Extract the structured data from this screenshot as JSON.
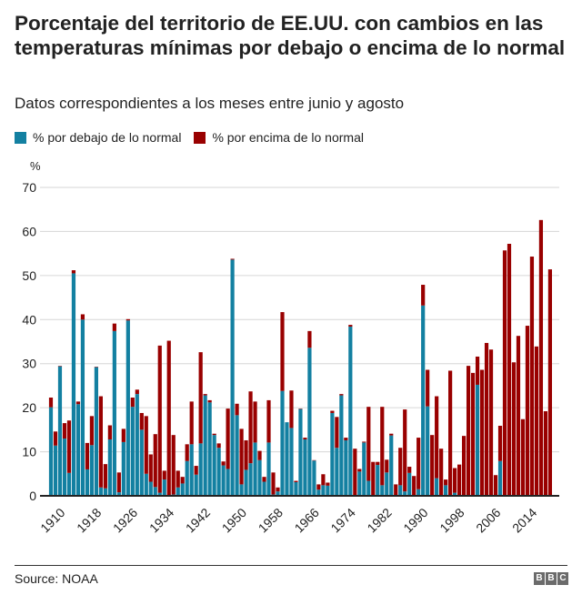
{
  "header": {
    "title": "Porcentaje del territorio de EE.UU. con cambios en las temperaturas mínimas por debajo o encima de lo normal",
    "subtitle": "Datos correspondientes a los meses entre junio y agosto"
  },
  "footer": {
    "source": "Source: NOAA",
    "logo": "BBC"
  },
  "chart_data": {
    "type": "bar",
    "stacked": true,
    "title": "Porcentaje del territorio de EE.UU. con cambios en las temperaturas mínimas por debajo o encima de lo normal",
    "subtitle": "Datos correspondientes a los meses entre junio y agosto",
    "xlabel": "",
    "ylabel": "%",
    "ylim": [
      0,
      70
    ],
    "yticks": [
      0,
      10,
      20,
      30,
      40,
      50,
      60,
      70
    ],
    "xtick_labels": [
      "1910",
      "1918",
      "1926",
      "1934",
      "1942",
      "1950",
      "1958",
      "1966",
      "1974",
      "1982",
      "1990",
      "1998",
      "2006",
      "2014"
    ],
    "grid": true,
    "legend_position": "top-left",
    "x_start": 1910,
    "x_end": 2020,
    "series": [
      {
        "name": "% por debajo de lo normal",
        "color": "#1380A1",
        "values": [
          20.1,
          11.4,
          29.4,
          13.0,
          5.2,
          50.5,
          20.8,
          40.0,
          6.0,
          11.5,
          29.2,
          1.9,
          1.7,
          12.8,
          37.4,
          0.8,
          12.2,
          39.8,
          20.2,
          23.1,
          15.0,
          5.0,
          3.2,
          2.0,
          0.7,
          3.7,
          0.0,
          0.3,
          1.9,
          2.8,
          7.9,
          11.7,
          4.8,
          11.9,
          22.8,
          21.2,
          13.8,
          10.9,
          6.9,
          6.1,
          53.6,
          18.3,
          2.6,
          5.9,
          7.4,
          12.1,
          8.1,
          3.2,
          12.1,
          0.3,
          1.0,
          23.8,
          16.7,
          15.4,
          3.1,
          19.7,
          12.8,
          33.6,
          8.0,
          1.4,
          2.4,
          2.3,
          18.8,
          10.9,
          22.8,
          12.6,
          38.4,
          0.0,
          5.5,
          12.1,
          3.4,
          0.0,
          7.0,
          2.4,
          5.3,
          13.7,
          0.0,
          2.4,
          1.0,
          5.2,
          0.0,
          1.5,
          43.2,
          20.3,
          0.0,
          4.0,
          0.0,
          2.4,
          0.0,
          0.7,
          0.0,
          0.0,
          0.0,
          0.0,
          25.2,
          0.0,
          0.0,
          0.0,
          0.0,
          7.9,
          0.0,
          0.0,
          0.0,
          0.0,
          0.0,
          0.0,
          0.0,
          0.0,
          0.0,
          0.0,
          0.0
        ]
      },
      {
        "name": "% por encima de lo normal",
        "color": "#990000",
        "values": [
          2.2,
          3.2,
          0.1,
          3.5,
          11.9,
          0.7,
          0.6,
          1.2,
          6.0,
          6.6,
          0.1,
          20.7,
          5.5,
          3.2,
          1.7,
          4.5,
          3.0,
          0.3,
          2.1,
          1.0,
          3.8,
          13.1,
          6.2,
          12.0,
          33.4,
          2.0,
          35.2,
          13.5,
          3.8,
          1.5,
          3.8,
          9.7,
          2.0,
          20.7,
          0.3,
          0.5,
          0.3,
          1.0,
          0.9,
          13.7,
          0.2,
          2.6,
          12.6,
          6.7,
          16.3,
          9.3,
          2.1,
          1.1,
          9.6,
          5.0,
          0.9,
          17.9,
          0.0,
          8.5,
          0.3,
          0.1,
          0.4,
          3.8,
          0.1,
          1.2,
          2.5,
          0.7,
          0.5,
          7.0,
          0.3,
          0.6,
          0.4,
          10.7,
          0.6,
          0.2,
          16.8,
          7.7,
          0.7,
          17.8,
          2.9,
          0.4,
          2.6,
          8.5,
          18.6,
          1.4,
          4.5,
          11.7,
          4.7,
          8.3,
          13.8,
          18.6,
          10.7,
          1.3,
          28.4,
          5.6,
          7.1,
          13.6,
          29.5,
          27.9,
          6.4,
          28.6,
          34.7,
          33.2,
          4.7,
          8.0,
          55.7,
          57.2,
          30.3,
          36.3,
          17.4,
          38.6,
          54.3,
          33.9,
          62.6,
          19.2,
          51.4
        ]
      }
    ]
  }
}
